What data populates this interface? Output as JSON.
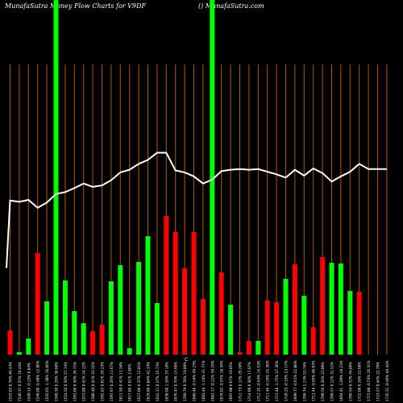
{
  "header": {
    "title_left": "MunafaSutra  Money Flow  Charts for V9DF",
    "title_right": "() MunafaSutra.com"
  },
  "colors": {
    "background": "#000000",
    "up_bar": "#00ff00",
    "down_bar": "#ff0000",
    "vertical_line": "#b35900",
    "price_line": "#ffffff",
    "text": "#ffffff"
  },
  "chart_data": {
    "type": "bar",
    "description_series": [
      "money flow bars",
      "price line"
    ],
    "categories": [
      "1555.03 0.78% 46.43%",
      "1540.37 0.55% 18.44%",
      "1549.15 -0.23% 6.84%",
      "1549.00 -0.48% 12.86%",
      "1535.65 -1.38% 16.06%",
      "1560.50 0.29% 38.68%",
      "1554.50 0.50% 57.74%",
      "1561.60 0.30% 39.71%",
      "1573.00 0.41% 24.12%",
      "1580.40 0.41% 10.32%",
      "1592.02 0.61% 29.23%",
      "1597.97 0.20% 11.67%",
      "1611.50 0.41% 11.34%",
      "1617.86 0.61% 2.80%",
      "1627.00 0.37% 12.81%",
      "1629.80 0.84% 42.33%",
      "1641.11 0.27% 16.73%",
      "1658.00 1.10% 37.18%",
      "1676.47 0.70% 15.60%",
      "1709.79 0.78% 19.89%",
      "1686.46 -0.54% 49.23%",
      "1683.44 -1.24% 31.77%",
      "1681.17 -0.22% 39.19%",
      "1679.02 -0.97% 18.34%",
      "1697.98 0.67% 19.85%",
      "1712.73 0.12% 29.20%",
      "1714.00 0.30% 17.07%",
      "1712.25 -0.43% 15.53%",
      "1711.40 -0.19% 35.38%",
      "1715.48 -1.75% 27.30%",
      "1720.25 -0.33% 23.17%",
      "1699.77 -0.61% 22.88%",
      "1706.74 1.13% 53.74%",
      "1712.44 -0.85% 46.03%",
      "1709.56 0.36% 22.89%",
      "1700.57 0.12% 31.51%",
      "1694.41 -1.09% 28.23%",
      "1706.54 0.72% 59.89%",
      "1722.08 0.18% 22.68%",
      "1715.88 -0.53% 26.31%",
      "1723.57 0.44% 22.79%",
      "1735.31 -0.40% 40.44%"
    ],
    "bars": [
      {
        "dir": "down",
        "value": 30
      },
      {
        "dir": "up",
        "value": 3
      },
      {
        "dir": "up",
        "value": 20
      },
      {
        "dir": "down",
        "value": 126
      },
      {
        "dir": "up",
        "value": 66
      },
      {
        "dir": "up",
        "value": 440
      },
      {
        "dir": "up",
        "value": 92
      },
      {
        "dir": "up",
        "value": 54
      },
      {
        "dir": "up",
        "value": 39
      },
      {
        "dir": "down",
        "value": 29
      },
      {
        "dir": "down",
        "value": 37
      },
      {
        "dir": "up",
        "value": 91
      },
      {
        "dir": "up",
        "value": 111
      },
      {
        "dir": "up",
        "value": 8
      },
      {
        "dir": "up",
        "value": 115
      },
      {
        "dir": "up",
        "value": 147
      },
      {
        "dir": "up",
        "value": 64
      },
      {
        "dir": "down",
        "value": 172
      },
      {
        "dir": "down",
        "value": 152
      },
      {
        "dir": "down",
        "value": 107
      },
      {
        "dir": "down",
        "value": 152
      },
      {
        "dir": "down",
        "value": 69
      },
      {
        "dir": "up",
        "value": 440
      },
      {
        "dir": "down",
        "value": 102
      },
      {
        "dir": "up",
        "value": 62
      },
      {
        "dir": "down",
        "value": 3
      },
      {
        "dir": "down",
        "value": 17
      },
      {
        "dir": "up",
        "value": 17
      },
      {
        "dir": "down",
        "value": 67
      },
      {
        "dir": "down",
        "value": 65
      },
      {
        "dir": "up",
        "value": 94
      },
      {
        "dir": "down",
        "value": 112
      },
      {
        "dir": "up",
        "value": 73
      },
      {
        "dir": "down",
        "value": 34
      },
      {
        "dir": "down",
        "value": 121
      },
      {
        "dir": "up",
        "value": 114
      },
      {
        "dir": "up",
        "value": 113
      },
      {
        "dir": "up",
        "value": 79
      },
      {
        "dir": "down",
        "value": 78
      },
      {
        "dir": "none",
        "value": 0
      },
      {
        "dir": "none",
        "value": 0
      },
      {
        "dir": "none",
        "value": 0
      }
    ],
    "price_line": [
      1543,
      1541,
      1544,
      1532,
      1540,
      1553,
      1556,
      1562,
      1569,
      1564,
      1566,
      1574,
      1586,
      1590,
      1599,
      1605,
      1616,
      1616,
      1589,
      1586,
      1580,
      1569,
      1575,
      1588,
      1590,
      1591,
      1590,
      1591,
      1587,
      1583,
      1578,
      1590,
      1581,
      1592,
      1585,
      1572,
      1580,
      1587,
      1599,
      1591,
      1591,
      1591
    ],
    "x_marker_label": "C",
    "grid": "vertical lines at each category",
    "ylim": [
      0,
      440
    ]
  }
}
